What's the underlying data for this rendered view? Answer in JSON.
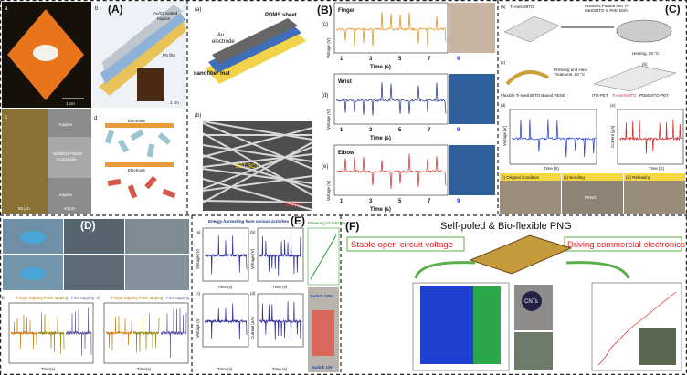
{
  "panel_a": {
    "label": "(A)",
    "sub_a": "a",
    "sub_b": "b",
    "sub_c": "c",
    "sub_d": "d",
    "scale_a": "1 cm",
    "scale_b": "1 cm",
    "film_1": "Au/Cr coated",
    "film_2": "Kapton",
    "film_3": "PS film",
    "sem_1": "Kapton",
    "sem_2": "NaNbO3-PDMS",
    "sem_3": "Composite",
    "sem_4": "Kapton",
    "scale_c1": "50 μm",
    "scale_c2": "40 μm",
    "electrode_top": "Electrode",
    "electrode_bottom": "Electrode"
  },
  "panel_b": {
    "label": "(B)",
    "sub_a": "(a)",
    "au": "Au",
    "electrode": "electrode",
    "pdms": "PDMS sheet",
    "mat": "nanofiber mat",
    "sub_b": "(b)",
    "bzt": "BZT-BCT",
    "scale": "300nm",
    "y_label": "Voltage (V)",
    "x_label": "Time (s)",
    "plots": [
      {
        "tag": "(c)",
        "name": "Finger",
        "ticks": [
          "1",
          "3",
          "5",
          "7",
          "9"
        ]
      },
      {
        "tag": "(d)",
        "name": "Wrist",
        "ticks": [
          "1",
          "3",
          "5",
          "7",
          "9"
        ]
      },
      {
        "tag": "(e)",
        "name": "Elbow",
        "ticks": [
          "1",
          "3",
          "5",
          "7",
          "9"
        ]
      }
    ]
  },
  "panel_c": {
    "label": "(C)",
    "sub_a": "(a)",
    "mesh": "Ti-mesh/BTO",
    "pour_1": "PDMS is Poured into Ti-",
    "pour_2": "mesh/BTO in Petri Dish",
    "heat": "Heating, 80 °C",
    "sub_b": "(b)",
    "sub_c": "(c)",
    "press_1": "Pressing and Heat",
    "press_2": "Treatment, 80 °C",
    "peng": "Flexible Ti-mesh/BTO Based PENG",
    "ito": "ITO-PET",
    "layer": "Ti-mesh/BTO",
    "pdms": "PDMS/ITO-PET",
    "sub_d": "(d)",
    "sub_e": "(e)",
    "volt": "Voltage [V]",
    "curr": "Current [μA]",
    "time_1": "Time [S]",
    "time_2": "Time [S]",
    "photo_1": "(i) Original Condition",
    "photo_2": "(ii) Bending",
    "photo_3": "(iii) Releasing",
    "photo_peng": "PENG"
  },
  "panel_d": {
    "label": "(D)",
    "sub_b": "b)",
    "sub_c": "c)",
    "finger": "Finger tapping",
    "palm": "Palm tapping",
    "foot": "Foot tapping",
    "finger_2": "Finger tapping",
    "palm_2": "Palm tapping",
    "foot_2": "Foot tapping",
    "time_1": "Time(s)",
    "time_2": "Time(s)"
  },
  "panel_e": {
    "label": "(E)",
    "title": "Energy harvesting from various activities",
    "calc": "Powering of calculator",
    "sub_a": "(a)",
    "sub_b": "(b)",
    "sub_c": "(c)",
    "sub_d": "(d)",
    "volt_1": "Voltage (V)",
    "volt_2": "Voltage (V)",
    "volt_3": "Voltage (V)",
    "curr": "Current (nA)",
    "time_1": "Time (s)",
    "time_2": "Time (s)",
    "time_3": "Time (s)",
    "time_4": "Time (s)",
    "off": "Switch OFF",
    "on": "Switch ON"
  },
  "panel_f": {
    "label": "(F)",
    "title": "Self-poled & Bio-flexible PNG",
    "left": "Stable open-circuit voltage",
    "right": "Driving commercial electronics",
    "cnts": "CNTs"
  }
}
